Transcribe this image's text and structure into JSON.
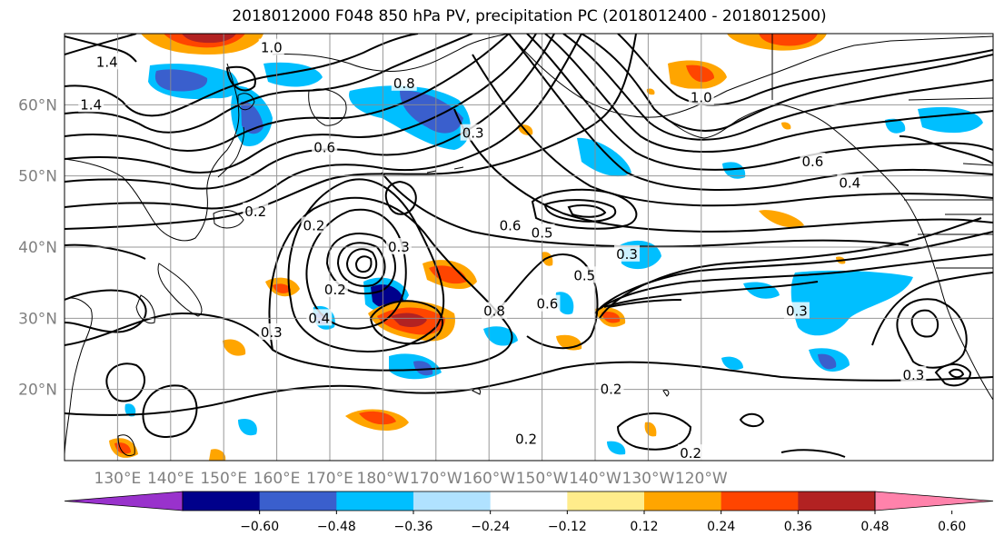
{
  "title": "2018012000 F048 850 hPa PV, precipitation PC (2018012400 - 2018012500)",
  "chart_data": {
    "type": "map-contour",
    "lon_range": [
      120,
      295
    ],
    "lat_range": [
      10,
      70
    ],
    "x_ticks": [
      "130°E",
      "140°E",
      "150°E",
      "160°E",
      "170°E",
      "180°W",
      "170°W",
      "160°W",
      "150°W",
      "140°W",
      "130°W",
      "120°W"
    ],
    "x_tick_lons": [
      130,
      140,
      150,
      160,
      170,
      180,
      190,
      200,
      210,
      220,
      230,
      240
    ],
    "y_ticks": [
      "20°N",
      "30°N",
      "40°N",
      "50°N",
      "60°N"
    ],
    "y_tick_lats": [
      20,
      30,
      40,
      50,
      60
    ],
    "grid": true,
    "colorbar": {
      "orientation": "horizontal",
      "location": "bottom",
      "extend": "both",
      "labels": [
        "−0.60",
        "−0.48",
        "−0.36",
        "−0.24",
        "−0.12",
        "0.12",
        "0.24",
        "0.36",
        "0.48",
        "0.60"
      ],
      "boundaries": [
        -0.6,
        -0.48,
        -0.36,
        -0.24,
        -0.12,
        0.12,
        0.24,
        0.36,
        0.48,
        0.6
      ],
      "colors": [
        "#9932cc",
        "#00008b",
        "#3a5fcd",
        "#00bfff",
        "#b0e2ff",
        "#ffffff",
        "#ffec8b",
        "#ffa500",
        "#ff4500",
        "#b22222",
        "#ff82ab"
      ]
    },
    "contour_labels": [
      {
        "text": "0.2",
        "lon": 156,
        "lat": 45
      },
      {
        "text": "0.2",
        "lon": 167,
        "lat": 43
      },
      {
        "text": "0.3",
        "lon": 183,
        "lat": 40
      },
      {
        "text": "0.3",
        "lon": 226,
        "lat": 39
      },
      {
        "text": "0.5",
        "lon": 218,
        "lat": 36
      },
      {
        "text": "0.3",
        "lon": 159,
        "lat": 28
      },
      {
        "text": "0.2",
        "lon": 171,
        "lat": 34
      },
      {
        "text": "0.8",
        "lon": 201,
        "lat": 31
      },
      {
        "text": "0.6",
        "lon": 211,
        "lat": 32
      },
      {
        "text": "0.3",
        "lon": 258,
        "lat": 31
      },
      {
        "text": "0.2",
        "lon": 223,
        "lat": 20
      },
      {
        "text": "0.2",
        "lon": 207,
        "lat": 13
      },
      {
        "text": "0.2",
        "lon": 238,
        "lat": 11
      },
      {
        "text": "1.4",
        "lon": 125,
        "lat": 60
      },
      {
        "text": "1.4",
        "lon": 128,
        "lat": 66
      },
      {
        "text": "1.0",
        "lon": 159,
        "lat": 68
      },
      {
        "text": "0.8",
        "lon": 184,
        "lat": 63
      },
      {
        "text": "0.3",
        "lon": 197,
        "lat": 56
      },
      {
        "text": "0.6",
        "lon": 169,
        "lat": 54
      },
      {
        "text": "0.6",
        "lon": 204,
        "lat": 43
      },
      {
        "text": "0.5",
        "lon": 210,
        "lat": 42
      },
      {
        "text": "0.4",
        "lon": 168,
        "lat": 30
      },
      {
        "text": "1.0",
        "lon": 240,
        "lat": 61
      },
      {
        "text": "0.6",
        "lon": 261,
        "lat": 52
      },
      {
        "text": "0.4",
        "lon": 268,
        "lat": 49
      },
      {
        "text": "0.3",
        "lon": 280,
        "lat": 22
      }
    ]
  }
}
